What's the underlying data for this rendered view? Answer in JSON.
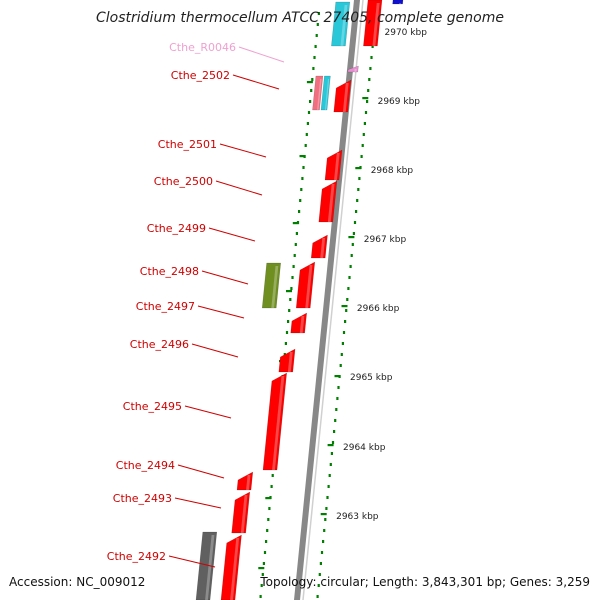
{
  "title": "Clostridium thermocellum ATCC 27405, complete genome",
  "accession_text": "Accession: NC_009012",
  "summary_text": "Topology: circular; Length: 3,843,301 bp; Genes: 3,259",
  "colors": {
    "cds": "#ff0000",
    "rrna": "#29c7d8",
    "trna": "#e58fcf",
    "trna_label": "#f0a0d0",
    "gene_label": "#d00000",
    "pseudo": "#6f8f20",
    "other": "#606060",
    "backbone": "#888888",
    "tick": "#008000"
  },
  "gene_labels": [
    {
      "id": "r0046",
      "text": "Cthe_R0046",
      "kind": "trna"
    },
    {
      "id": "2502",
      "text": "Cthe_2502",
      "kind": "cds"
    },
    {
      "id": "2501",
      "text": "Cthe_2501",
      "kind": "cds"
    },
    {
      "id": "2500",
      "text": "Cthe_2500",
      "kind": "cds"
    },
    {
      "id": "2499",
      "text": "Cthe_2499",
      "kind": "cds"
    },
    {
      "id": "2498",
      "text": "Cthe_2498",
      "kind": "cds"
    },
    {
      "id": "2497",
      "text": "Cthe_2497",
      "kind": "cds"
    },
    {
      "id": "2496",
      "text": "Cthe_2496",
      "kind": "cds"
    },
    {
      "id": "2495",
      "text": "Cthe_2495",
      "kind": "cds"
    },
    {
      "id": "2494",
      "text": "Cthe_2494",
      "kind": "cds"
    },
    {
      "id": "2493",
      "text": "Cthe_2493",
      "kind": "cds"
    },
    {
      "id": "2492",
      "text": "Cthe_2492",
      "kind": "cds"
    }
  ],
  "scale_labels": [
    "2970 kbp",
    "2969 kbp",
    "2968 kbp",
    "2967 kbp",
    "2966 kbp",
    "2965 kbp",
    "2964 kbp",
    "2963 kbp"
  ]
}
